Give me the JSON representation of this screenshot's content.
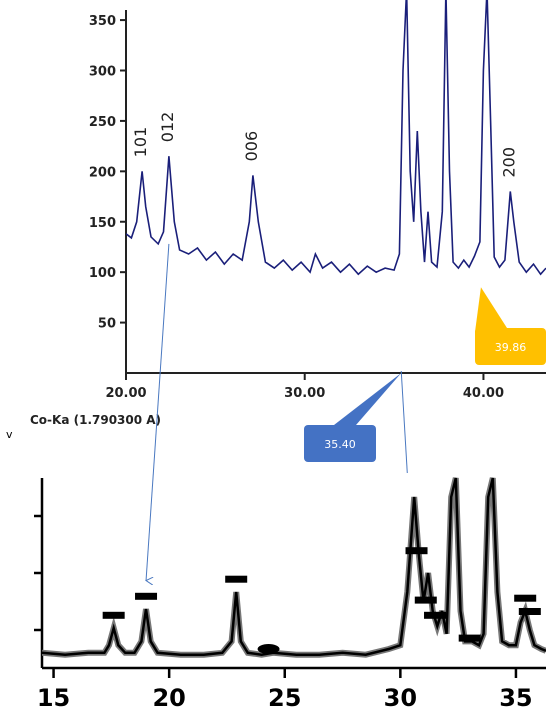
{
  "chart_data": [
    {
      "type": "line",
      "title": "",
      "xlabel": "Co-Ka (1.790300 A)",
      "ylabel": "",
      "xlim": [
        20,
        43.5
      ],
      "ylim": [
        0,
        360
      ],
      "x_ticks": [
        20,
        30,
        40
      ],
      "x_tick_labels": [
        "20.00",
        "30.00",
        "40.00"
      ],
      "y_ticks": [
        50,
        100,
        150,
        200,
        250,
        300,
        350
      ],
      "y_tick_labels": [
        "50",
        "100",
        "150",
        "200",
        "250",
        "300",
        "350"
      ],
      "grid": false,
      "series": [
        {
          "color": "#1a1f7a",
          "points": [
            [
              20.0,
              138
            ],
            [
              20.3,
              134
            ],
            [
              20.6,
              150
            ],
            [
              20.9,
              200
            ],
            [
              21.1,
              165
            ],
            [
              21.4,
              135
            ],
            [
              21.8,
              128
            ],
            [
              22.1,
              140
            ],
            [
              22.4,
              215
            ],
            [
              22.7,
              150
            ],
            [
              23.0,
              122
            ],
            [
              23.5,
              118
            ],
            [
              24.0,
              124
            ],
            [
              24.5,
              112
            ],
            [
              25.0,
              120
            ],
            [
              25.5,
              108
            ],
            [
              26.0,
              118
            ],
            [
              26.5,
              112
            ],
            [
              26.9,
              150
            ],
            [
              27.1,
              196
            ],
            [
              27.4,
              150
            ],
            [
              27.8,
              110
            ],
            [
              28.3,
              104
            ],
            [
              28.8,
              112
            ],
            [
              29.3,
              102
            ],
            [
              29.8,
              110
            ],
            [
              30.3,
              100
            ],
            [
              30.6,
              118
            ],
            [
              31.0,
              104
            ],
            [
              31.5,
              110
            ],
            [
              32.0,
              100
            ],
            [
              32.5,
              108
            ],
            [
              33.0,
              98
            ],
            [
              33.5,
              106
            ],
            [
              34.0,
              100
            ],
            [
              34.5,
              104
            ],
            [
              35.0,
              102
            ],
            [
              35.3,
              118
            ],
            [
              35.5,
              300
            ],
            [
              35.7,
              380
            ],
            [
              35.9,
              200
            ],
            [
              36.1,
              150
            ],
            [
              36.3,
              240
            ],
            [
              36.5,
              160
            ],
            [
              36.7,
              110
            ],
            [
              36.9,
              160
            ],
            [
              37.1,
              110
            ],
            [
              37.4,
              105
            ],
            [
              37.7,
              160
            ],
            [
              37.9,
              380
            ],
            [
              38.1,
              200
            ],
            [
              38.3,
              110
            ],
            [
              38.6,
              104
            ],
            [
              38.9,
              112
            ],
            [
              39.2,
              105
            ],
            [
              39.5,
              116
            ],
            [
              39.8,
              130
            ],
            [
              40.0,
              300
            ],
            [
              40.2,
              380
            ],
            [
              40.4,
              250
            ],
            [
              40.6,
              115
            ],
            [
              40.9,
              105
            ],
            [
              41.2,
              112
            ],
            [
              41.5,
              180
            ],
            [
              41.7,
              150
            ],
            [
              42.0,
              110
            ],
            [
              42.4,
              100
            ],
            [
              42.8,
              108
            ],
            [
              43.2,
              98
            ],
            [
              43.5,
              104
            ]
          ]
        }
      ],
      "annotations": [
        {
          "text": "101",
          "x": 20.9,
          "y": 200
        },
        {
          "text": "012",
          "x": 22.4,
          "y": 215
        },
        {
          "text": "006",
          "x": 27.1,
          "y": 196
        },
        {
          "text": "200",
          "x": 41.5,
          "y": 180
        }
      ],
      "callouts": [
        {
          "text": "35.40",
          "x": 35.4,
          "color": "#4472c4"
        },
        {
          "text": "39.86",
          "x": 39.86,
          "color": "#ffc000"
        }
      ]
    },
    {
      "type": "line",
      "title": "",
      "xlabel": "",
      "ylabel": "",
      "xlim": [
        14.5,
        36.3
      ],
      "ylim": [
        0,
        100
      ],
      "x_ticks": [
        15,
        20,
        25,
        30,
        35
      ],
      "x_tick_labels": [
        "15",
        "20",
        "25",
        "30",
        "35"
      ],
      "grid": false,
      "series": [
        {
          "color": "#000000",
          "points": [
            [
              14.5,
              8
            ],
            [
              15.5,
              7
            ],
            [
              16.5,
              8
            ],
            [
              17.2,
              8
            ],
            [
              17.4,
              12
            ],
            [
              17.6,
              21
            ],
            [
              17.8,
              12
            ],
            [
              18.1,
              8
            ],
            [
              18.5,
              8
            ],
            [
              18.8,
              14
            ],
            [
              19.0,
              31
            ],
            [
              19.2,
              14
            ],
            [
              19.5,
              8
            ],
            [
              20.5,
              7
            ],
            [
              21.5,
              7
            ],
            [
              22.3,
              8
            ],
            [
              22.7,
              14
            ],
            [
              22.9,
              40
            ],
            [
              23.1,
              14
            ],
            [
              23.4,
              8
            ],
            [
              24.0,
              7
            ],
            [
              24.5,
              8
            ],
            [
              25.5,
              7
            ],
            [
              26.5,
              7
            ],
            [
              27.5,
              8
            ],
            [
              28.5,
              7
            ],
            [
              29.5,
              10
            ],
            [
              30.0,
              12
            ],
            [
              30.3,
              40
            ],
            [
              30.6,
              90
            ],
            [
              30.8,
              60
            ],
            [
              31.0,
              35
            ],
            [
              31.2,
              50
            ],
            [
              31.4,
              30
            ],
            [
              31.6,
              22
            ],
            [
              31.8,
              30
            ],
            [
              32.0,
              18
            ],
            [
              32.2,
              90
            ],
            [
              32.4,
              100
            ],
            [
              32.6,
              30
            ],
            [
              32.8,
              14
            ],
            [
              33.1,
              14
            ],
            [
              33.4,
              12
            ],
            [
              33.6,
              18
            ],
            [
              33.8,
              90
            ],
            [
              34.0,
              100
            ],
            [
              34.2,
              40
            ],
            [
              34.4,
              14
            ],
            [
              34.7,
              12
            ],
            [
              35.0,
              12
            ],
            [
              35.2,
              24
            ],
            [
              35.4,
              30
            ],
            [
              35.6,
              20
            ],
            [
              35.8,
              12
            ],
            [
              36.1,
              10
            ],
            [
              36.3,
              9
            ]
          ]
        }
      ],
      "markers": [
        {
          "shape": "bar",
          "x": 17.6,
          "y": 28
        },
        {
          "shape": "bar",
          "x": 19.0,
          "y": 38
        },
        {
          "shape": "bar",
          "x": 22.9,
          "y": 47
        },
        {
          "shape": "ellipse",
          "x": 24.3,
          "y": 10
        },
        {
          "shape": "bar",
          "x": 30.7,
          "y": 62
        },
        {
          "shape": "bar",
          "x": 31.1,
          "y": 36
        },
        {
          "shape": "bar",
          "x": 31.5,
          "y": 28
        },
        {
          "shape": "bar",
          "x": 33.0,
          "y": 16
        },
        {
          "shape": "bar",
          "x": 35.4,
          "y": 37
        },
        {
          "shape": "bar",
          "x": 35.6,
          "y": 30
        }
      ]
    }
  ],
  "stray_mark": "v"
}
